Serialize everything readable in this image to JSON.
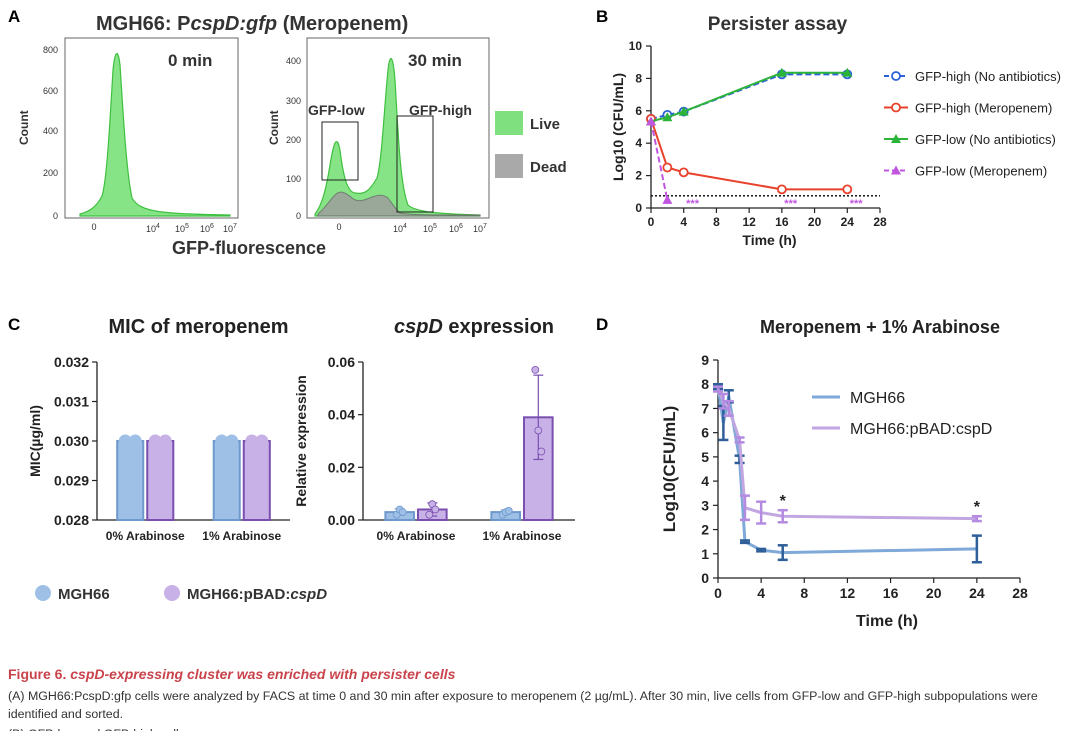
{
  "figure": {
    "panel_letters": {
      "a": "A",
      "b": "B",
      "c": "C",
      "d": "D"
    }
  },
  "caption": {
    "label": "Figure 6.",
    "title_text": "cspD-expressing cluster was enriched with persister cells",
    "paragraph_a": "(A) MGH66:PcspD:gfp cells were analyzed by FACS at time 0 and 30 min after exposure to meropenem (2 µg/mL). After 30 min, live cells from GFP-low and GFP-high subpopulations were identified and sorted.",
    "paragraph_b": "(B) GFP-low and GFP-high cells..."
  },
  "panel_a": {
    "title_prefix": "MGH66: P",
    "title_italic": "cspD:gfp",
    "title_suffix": " (Meropenem)",
    "xlabel": "GFP-fluorescence",
    "ylabel": "Count",
    "plot1_label": "0 min",
    "plot2_label": "30 min",
    "gate_low_label": "GFP-low",
    "gate_high_label": "GFP-high",
    "legend": [
      {
        "label": "Live",
        "color": "#7ee07e"
      },
      {
        "label": "Dead",
        "color": "#a9a9a9"
      }
    ],
    "x_ticks": [
      "0",
      "10",
      "10",
      "10",
      "10"
    ],
    "x_tick_exp": [
      "",
      "4",
      "5",
      "6",
      "7"
    ],
    "plot1_y_ticks": [
      "0",
      "200",
      "400",
      "600",
      "800"
    ],
    "plot2_y_ticks": [
      "0",
      "100",
      "200",
      "300",
      "400"
    ]
  },
  "chart_data": [
    {
      "type": "line",
      "panel": "B",
      "title": "Persister assay",
      "xlabel": "Time (h)",
      "ylabel": "Log10 (CFU/mL)",
      "xlim": [
        0,
        28
      ],
      "ylim": [
        0,
        10
      ],
      "x_ticks": [
        0,
        4,
        8,
        12,
        16,
        20,
        24,
        28
      ],
      "y_ticks": [
        0,
        2,
        4,
        6,
        8,
        10
      ],
      "detection_limit": 0.75,
      "series": [
        {
          "name": "GFP-high (No antibiotics)",
          "color": "#2b62d6",
          "marker": "circle",
          "dashed": true,
          "x": [
            0,
            2,
            4,
            16,
            24
          ],
          "y": [
            5.5,
            5.75,
            5.95,
            8.25,
            8.25
          ]
        },
        {
          "name": "GFP-high (Meropenem)",
          "color": "#e8412c",
          "marker": "circle",
          "dashed": false,
          "x": [
            0,
            2,
            4,
            16,
            24
          ],
          "y": [
            5.5,
            2.5,
            2.2,
            1.15,
            1.15
          ]
        },
        {
          "name": "GFP-low (No antibiotics)",
          "color": "#2bb33a",
          "marker": "triangle",
          "dashed": false,
          "x": [
            0,
            2,
            4,
            16,
            24
          ],
          "y": [
            5.35,
            5.6,
            5.95,
            8.35,
            8.35
          ]
        },
        {
          "name": "GFP-low (Meropenem)",
          "color": "#c055e0",
          "marker": "triangle",
          "dashed": true,
          "x": [
            0,
            2
          ],
          "y": [
            5.35,
            0.5
          ]
        }
      ],
      "annotations": [
        {
          "x": 4.3,
          "text": "***"
        },
        {
          "x": 16.3,
          "text": "***"
        },
        {
          "x": 24.3,
          "text": "***"
        }
      ]
    },
    {
      "type": "bar",
      "panel": "C-left",
      "title": "MIC of meropenem",
      "xlabel": "",
      "ylabel": "MIC(µg/ml)",
      "categories": [
        "0% Arabinose",
        "1% Arabinose"
      ],
      "ylim": [
        0.028,
        0.032
      ],
      "y_ticks": [
        "0.028",
        "0.029",
        "0.030",
        "0.031",
        "0.032"
      ],
      "series": [
        {
          "name": "MGH66",
          "color": "#9ec0e6",
          "values": [
            0.03,
            0.03
          ]
        },
        {
          "name": "MGH66:pBAD:cspD",
          "color": "#c7b1e6",
          "values": [
            0.03,
            0.03
          ]
        }
      ]
    },
    {
      "type": "bar",
      "panel": "C-right",
      "title_italic": "cspD",
      "title_rest": " expression",
      "xlabel": "",
      "ylabel": "Relative expression",
      "categories": [
        "0% Arabinose",
        "1% Arabinose"
      ],
      "ylim": [
        0,
        0.06
      ],
      "y_ticks": [
        "0.00",
        "0.02",
        "0.04",
        "0.06"
      ],
      "series": [
        {
          "name": "MGH66",
          "color": "#9ec0e6",
          "values": [
            0.003,
            0.003
          ],
          "err": [
            0.0012,
            0.0008
          ],
          "points": [
            [
              0.002,
              0.004,
              0.003
            ],
            [
              0.002,
              0.003,
              0.0035
            ]
          ]
        },
        {
          "name": "MGH66:pBAD:cspD",
          "color": "#c7b1e6",
          "values": [
            0.004,
            0.039
          ],
          "err": [
            0.0025,
            0.016
          ],
          "points": [
            [
              0.002,
              0.006,
              0.004
            ],
            [
              0.057,
              0.034,
              0.026
            ]
          ]
        }
      ]
    },
    {
      "type": "line",
      "panel": "D",
      "title": "Meropenem + 1% Arabinose",
      "xlabel": "Time (h)",
      "ylabel": "Log10(CFU/mL)",
      "xlim": [
        0,
        28
      ],
      "ylim": [
        0,
        9
      ],
      "x_ticks": [
        0,
        4,
        8,
        12,
        16,
        20,
        24,
        28
      ],
      "y_ticks": [
        0,
        1,
        2,
        3,
        4,
        5,
        6,
        7,
        8,
        9
      ],
      "series": [
        {
          "name": "MGH66",
          "color": "#7fa9d8",
          "errcolor": "#2e5f99",
          "x": [
            0,
            0.5,
            1,
            2,
            2.5,
            4,
            6,
            24
          ],
          "y": [
            7.9,
            6.4,
            7.5,
            4.9,
            1.5,
            1.15,
            1.05,
            1.2
          ],
          "err": [
            0.1,
            0.7,
            0.25,
            0.15,
            0.05,
            0.05,
            0.3,
            0.55
          ]
        },
        {
          "name": "MGH66:pBAD:cspD",
          "color": "#c2a6e2",
          "errcolor": "#b48be0",
          "x": [
            0,
            0.5,
            1,
            2,
            2.5,
            4,
            6,
            24
          ],
          "y": [
            7.8,
            7.3,
            7.0,
            5.7,
            2.9,
            2.7,
            2.55,
            2.45
          ],
          "err": [
            0.1,
            0.3,
            0.3,
            0.1,
            0.5,
            0.45,
            0.25,
            0.1
          ]
        }
      ],
      "annotations": [
        {
          "x": 6,
          "text": "*"
        },
        {
          "x": 24,
          "text": "*"
        }
      ]
    }
  ],
  "legend_c": [
    {
      "label": "MGH66",
      "italic_tail": "",
      "color": "#9ec0e6"
    },
    {
      "label": "MGH66:pBAD:",
      "italic_tail": "cspD",
      "color": "#c7b1e6"
    }
  ]
}
